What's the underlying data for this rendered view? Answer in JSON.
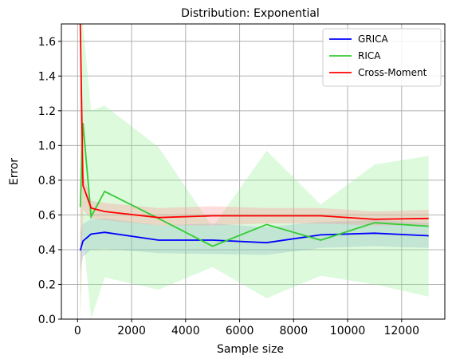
{
  "chart_data": {
    "type": "line",
    "title": "Distribution: Exponential",
    "xlabel": "Sample size",
    "ylabel": "Error",
    "xlim": [
      -600,
      13600
    ],
    "ylim": [
      0,
      1.7
    ],
    "xticks": [
      0,
      2000,
      4000,
      6000,
      8000,
      10000,
      12000
    ],
    "yticks": [
      0.0,
      0.2,
      0.4,
      0.6,
      0.8,
      1.0,
      1.2,
      1.4,
      1.6
    ],
    "xtick_labels": [
      "0",
      "2000",
      "4000",
      "6000",
      "8000",
      "10000",
      "12000"
    ],
    "ytick_labels": [
      "0.0",
      "0.2",
      "0.4",
      "0.6",
      "0.8",
      "1.0",
      "1.2",
      "1.4",
      "1.6"
    ],
    "grid": true,
    "legend_position": "top-right",
    "x": [
      100,
      200,
      500,
      1000,
      3000,
      5000,
      7000,
      9000,
      11000,
      13000
    ],
    "series": [
      {
        "name": "GRICA",
        "color": "#0000ff",
        "values": [
          0.395,
          0.45,
          0.49,
          0.5,
          0.455,
          0.455,
          0.44,
          0.485,
          0.495,
          0.48
        ],
        "band_upper": [
          0.5,
          0.55,
          0.575,
          0.58,
          0.54,
          0.55,
          0.53,
          0.56,
          0.57,
          0.555
        ],
        "band_lower": [
          0.28,
          0.36,
          0.4,
          0.405,
          0.38,
          0.375,
          0.37,
          0.41,
          0.42,
          0.41
        ],
        "band_color": "#7f9cd6"
      },
      {
        "name": "RICA",
        "color": "#33cc33",
        "values": [
          0.645,
          1.13,
          0.59,
          0.735,
          0.58,
          0.42,
          0.545,
          0.455,
          0.555,
          0.535
        ],
        "band_upper": [
          1.7,
          1.7,
          1.2,
          1.23,
          0.99,
          0.53,
          0.97,
          0.66,
          0.89,
          0.94
        ],
        "band_lower": [
          0.0,
          0.5,
          0.0,
          0.24,
          0.17,
          0.3,
          0.12,
          0.25,
          0.2,
          0.13
        ],
        "band_color": "#90ee90"
      },
      {
        "name": "Cross-Moment",
        "color": "#ff0000",
        "values": [
          1.7,
          0.77,
          0.64,
          0.62,
          0.585,
          0.595,
          0.595,
          0.595,
          0.575,
          0.58
        ],
        "band_upper": [
          1.7,
          0.84,
          0.68,
          0.67,
          0.64,
          0.65,
          0.64,
          0.64,
          0.62,
          0.63
        ],
        "band_lower": [
          0.0,
          0.63,
          0.58,
          0.57,
          0.54,
          0.54,
          0.55,
          0.55,
          0.54,
          0.54
        ],
        "band_color": "#ff9090"
      }
    ]
  }
}
